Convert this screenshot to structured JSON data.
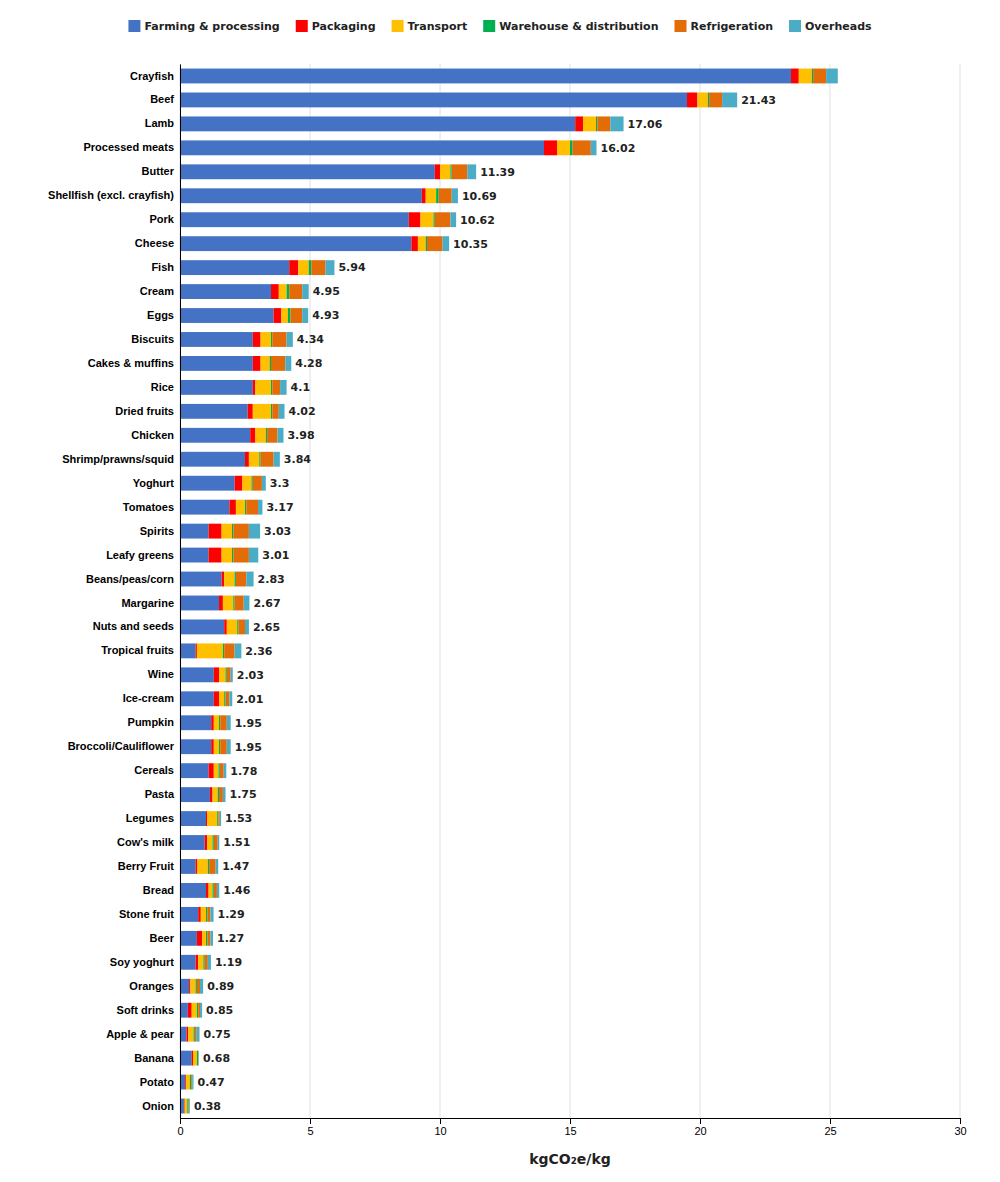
{
  "chart_data": {
    "type": "bar",
    "orientation": "horizontal",
    "stacked": true,
    "xlabel": "kgCO₂e/kg",
    "categories": [
      "Crayfish",
      "Beef",
      "Lamb",
      "Processed meats",
      "Butter",
      "Shellfish (excl. crayfish)",
      "Pork",
      "Cheese",
      "Fish",
      "Cream",
      "Eggs",
      "Biscuits",
      "Cakes & muffins",
      "Rice",
      "Dried fruits",
      "Chicken",
      "Shrimp/prawns/squid",
      "Yoghurt",
      "Tomatoes",
      "Spirits",
      "Leafy greens",
      "Beans/peas/corn",
      "Margarine",
      "Nuts and seeds",
      "Tropical fruits",
      "Wine",
      "Ice-cream",
      "Pumpkin",
      "Broccoli/Cauliflower",
      "Cereals",
      "Pasta",
      "Legumes",
      "Cow's milk",
      "Berry Fruit",
      "Bread",
      "Stone fruit",
      "Beer",
      "Soy yoghurt",
      "Oranges",
      "Soft drinks",
      "Apple & pear",
      "Banana",
      "Potato",
      "Onion"
    ],
    "series": [
      {
        "name": "Farming & processing",
        "color": "#4472C4",
        "values": [
          23.5,
          19.5,
          15.2,
          14.0,
          9.8,
          9.3,
          8.8,
          8.9,
          4.2,
          3.5,
          3.6,
          2.8,
          2.8,
          2.8,
          2.6,
          2.7,
          2.5,
          2.1,
          1.9,
          1.1,
          1.1,
          1.6,
          1.5,
          1.7,
          0.6,
          1.3,
          1.3,
          1.2,
          1.2,
          1.1,
          1.15,
          1.0,
          0.95,
          0.6,
          1.0,
          0.7,
          0.65,
          0.6,
          0.35,
          0.3,
          0.25,
          0.45,
          0.2,
          0.15
        ]
      },
      {
        "name": "Packaging",
        "color": "#FF0000",
        "values": [
          0.3,
          0.4,
          0.3,
          0.5,
          0.2,
          0.15,
          0.45,
          0.25,
          0.35,
          0.3,
          0.3,
          0.3,
          0.3,
          0.1,
          0.2,
          0.2,
          0.15,
          0.3,
          0.25,
          0.5,
          0.5,
          0.1,
          0.15,
          0.1,
          0.05,
          0.2,
          0.2,
          0.1,
          0.1,
          0.2,
          0.1,
          0.05,
          0.1,
          0.07,
          0.1,
          0.1,
          0.2,
          0.1,
          0.05,
          0.15,
          0.07,
          0.05,
          0.03,
          0.03
        ]
      },
      {
        "name": "Transport",
        "color": "#FFC000",
        "values": [
          0.5,
          0.4,
          0.5,
          0.5,
          0.4,
          0.4,
          0.5,
          0.3,
          0.4,
          0.3,
          0.25,
          0.4,
          0.35,
          0.6,
          0.7,
          0.4,
          0.4,
          0.35,
          0.35,
          0.4,
          0.4,
          0.4,
          0.4,
          0.4,
          1.0,
          0.25,
          0.2,
          0.2,
          0.2,
          0.18,
          0.2,
          0.38,
          0.2,
          0.4,
          0.15,
          0.2,
          0.15,
          0.2,
          0.2,
          0.2,
          0.2,
          0.15,
          0.15,
          0.1
        ]
      },
      {
        "name": "Warehouse & distribution",
        "color": "#00B050",
        "values": [
          0.05,
          0.05,
          0.05,
          0.1,
          0.05,
          0.1,
          0.05,
          0.05,
          0.1,
          0.1,
          0.1,
          0.05,
          0.05,
          0.05,
          0.05,
          0.05,
          0.05,
          0.05,
          0.05,
          0.05,
          0.05,
          0.05,
          0.05,
          0.05,
          0.05,
          0.05,
          0.05,
          0.05,
          0.05,
          0.05,
          0.05,
          0.05,
          0.05,
          0.05,
          0.05,
          0.05,
          0.05,
          0.05,
          0.05,
          0.05,
          0.05,
          0.05,
          0.05,
          0.05
        ]
      },
      {
        "name": "Refrigeration",
        "color": "#E36C09",
        "values": [
          0.5,
          0.5,
          0.5,
          0.7,
          0.6,
          0.5,
          0.6,
          0.6,
          0.55,
          0.5,
          0.45,
          0.55,
          0.55,
          0.3,
          0.25,
          0.4,
          0.5,
          0.35,
          0.45,
          0.6,
          0.6,
          0.4,
          0.35,
          0.25,
          0.4,
          0.15,
          0.15,
          0.25,
          0.25,
          0.15,
          0.15,
          0.05,
          0.15,
          0.25,
          0.12,
          0.12,
          0.12,
          0.12,
          0.12,
          0.07,
          0.07,
          0.01,
          0.04,
          0.02
        ]
      },
      {
        "name": "Overheads",
        "color": "#4BACC6",
        "values": [
          0.45,
          0.58,
          0.51,
          0.22,
          0.34,
          0.24,
          0.22,
          0.25,
          0.34,
          0.25,
          0.23,
          0.24,
          0.23,
          0.25,
          0.22,
          0.23,
          0.24,
          0.15,
          0.17,
          0.43,
          0.36,
          0.28,
          0.22,
          0.15,
          0.26,
          0.08,
          0.11,
          0.15,
          0.15,
          0.1,
          0.1,
          0.05,
          0.06,
          0.1,
          0.09,
          0.12,
          0.1,
          0.12,
          0.12,
          0.08,
          0.11,
          0.02,
          0.05,
          0.03
        ]
      }
    ],
    "totals": [
      null,
      21.43,
      17.06,
      16.02,
      11.39,
      10.69,
      10.62,
      10.35,
      5.94,
      4.95,
      4.93,
      4.34,
      4.28,
      4.1,
      4.02,
      3.98,
      3.84,
      3.3,
      3.17,
      3.03,
      3.01,
      2.83,
      2.67,
      2.65,
      2.36,
      2.03,
      2.01,
      1.95,
      1.95,
      1.78,
      1.75,
      1.53,
      1.51,
      1.47,
      1.46,
      1.29,
      1.27,
      1.19,
      0.89,
      0.85,
      0.75,
      0.68,
      0.47,
      0.38
    ],
    "xlim": [
      0,
      30
    ],
    "xticks": [
      0,
      5,
      10,
      15,
      20,
      25,
      30
    ],
    "grid": true,
    "legend": "top"
  }
}
